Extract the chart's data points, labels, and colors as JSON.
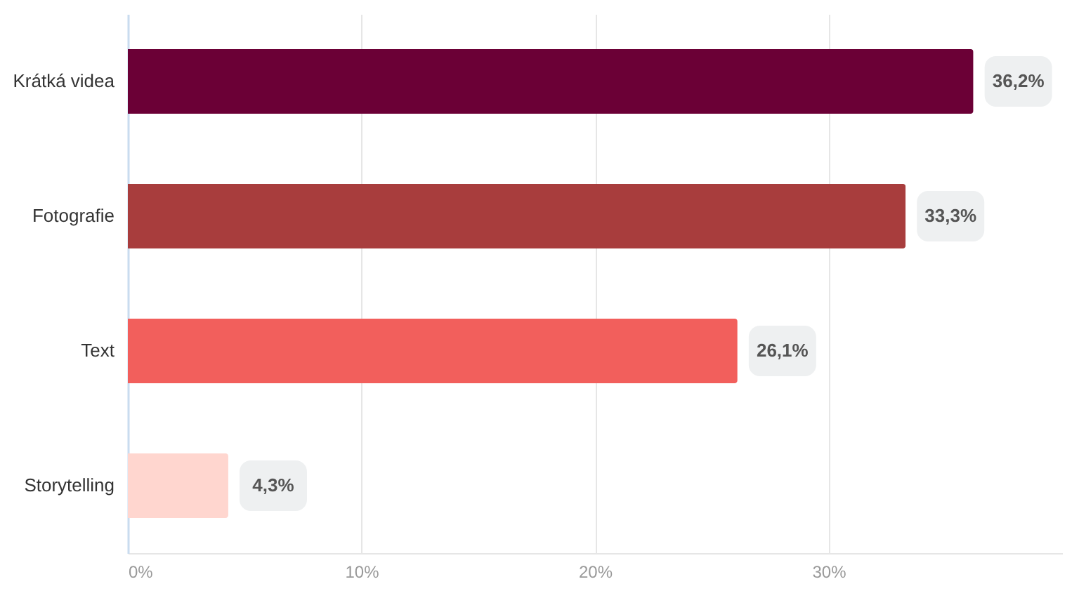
{
  "chart_data": {
    "type": "bar",
    "orientation": "horizontal",
    "categories": [
      "Krátká videa",
      "Fotografie",
      "Text",
      "Storytelling"
    ],
    "values": [
      36.2,
      33.3,
      26.1,
      4.3
    ],
    "colors": [
      "#6b0036",
      "#a83d3d",
      "#f25f5c",
      "#ffd6cf"
    ],
    "value_labels": [
      "36,2%",
      "33,3%",
      "26,1%",
      "4,3%"
    ],
    "xlim": [
      0,
      40
    ],
    "xticks": [
      {
        "value": 0,
        "label": "0%"
      },
      {
        "value": 10,
        "label": "10%"
      },
      {
        "value": 20,
        "label": "20%"
      },
      {
        "value": 30,
        "label": "30%"
      }
    ],
    "grid": "x"
  }
}
